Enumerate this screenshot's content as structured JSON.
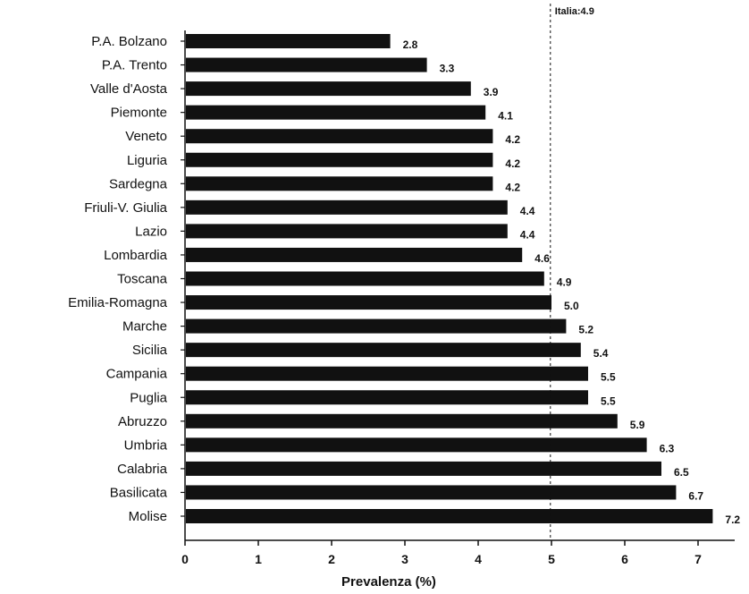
{
  "chart_data": {
    "type": "bar",
    "orientation": "horizontal",
    "categories": [
      "P.A. Bolzano",
      "P.A. Trento",
      "Valle d'Aosta",
      "Piemonte",
      "Veneto",
      "Liguria",
      "Sardegna",
      "Friuli-V. Giulia",
      "Lazio",
      "Lombardia",
      "Toscana",
      "Emilia-Romagna",
      "Marche",
      "Sicilia",
      "Campania",
      "Puglia",
      "Abruzzo",
      "Umbria",
      "Calabria",
      "Basilicata",
      "Molise"
    ],
    "values": [
      2.8,
      3.3,
      3.9,
      4.1,
      4.2,
      4.2,
      4.2,
      4.4,
      4.4,
      4.6,
      4.9,
      5.0,
      5.2,
      5.4,
      5.5,
      5.5,
      5.9,
      6.3,
      6.5,
      6.7,
      7.2
    ],
    "value_labels": [
      "2.8",
      "3.3",
      "3.9",
      "4.1",
      "4.2",
      "4.2",
      "4.2",
      "4.4",
      "4.4",
      "4.6",
      "4.9",
      "5.0",
      "5.2",
      "5.4",
      "5.5",
      "5.5",
      "5.9",
      "6.3",
      "6.5",
      "6.7",
      "7.2"
    ],
    "xlabel": "Prevalenza (%)",
    "xlim": [
      0,
      7.5
    ],
    "xticks": [
      0,
      1,
      2,
      3,
      4,
      5,
      6,
      7
    ],
    "xtick_labels": [
      "0",
      "1",
      "2",
      "3",
      "4",
      "5",
      "6",
      "7"
    ],
    "reference_line": {
      "label": "Italia:4.9",
      "value": 4.9,
      "style": "dashed"
    },
    "grid": false,
    "bar_color": "#111111"
  }
}
